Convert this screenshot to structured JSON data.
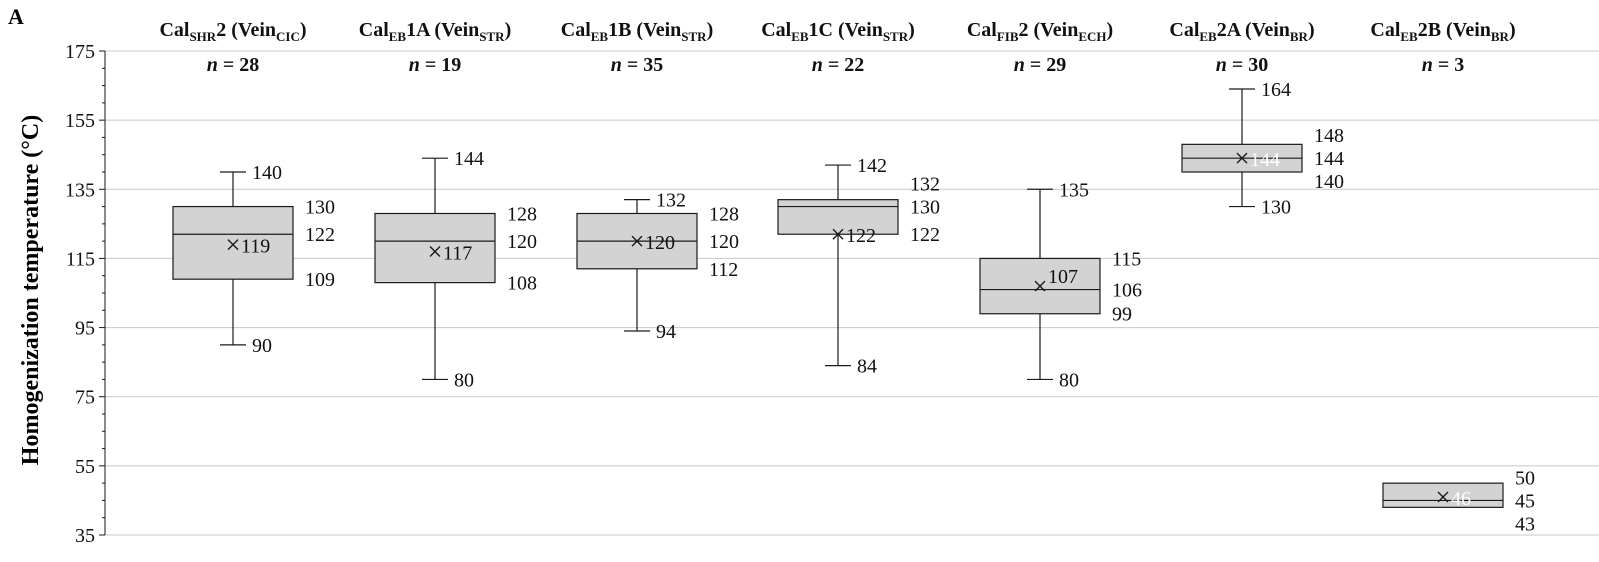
{
  "panel_label": "A",
  "chart_data": {
    "type": "boxplot",
    "ylabel": "Homogenization temperature (°C)",
    "ylim": [
      35,
      175
    ],
    "yticks": [
      35,
      55,
      75,
      95,
      115,
      135,
      155,
      175
    ],
    "grid": true,
    "series": [
      {
        "label_parts": [
          [
            "Cal",
            "n"
          ],
          [
            "SHR",
            "sub"
          ],
          [
            "2 (Vein",
            "n"
          ],
          [
            "CIC",
            "sub"
          ],
          [
            ")",
            "n"
          ]
        ],
        "n_label": "n",
        "n_value": "= 28",
        "min": 90,
        "q1": 109,
        "median": 122,
        "q3": 130,
        "max": 140,
        "mean": 119,
        "labels": {
          "max": "140",
          "q3": "130",
          "median": "122",
          "q1": "109",
          "min": "90",
          "mean": "119"
        }
      },
      {
        "label_parts": [
          [
            "Cal",
            "n"
          ],
          [
            "EB",
            "sub"
          ],
          [
            "1A (Vein",
            "n"
          ],
          [
            "STR",
            "sub"
          ],
          [
            ")",
            "n"
          ]
        ],
        "n_label": "n",
        "n_value": "= 19",
        "min": 80,
        "q1": 108,
        "median": 120,
        "q3": 128,
        "max": 144,
        "mean": 117,
        "labels": {
          "max": "144",
          "q3": "128",
          "median": "120",
          "q1": "108",
          "min": "80",
          "mean": "117"
        }
      },
      {
        "label_parts": [
          [
            "Cal",
            "n"
          ],
          [
            "EB",
            "sub"
          ],
          [
            "1B (Vein",
            "n"
          ],
          [
            "STR",
            "sub"
          ],
          [
            ")",
            "n"
          ]
        ],
        "n_label": "n",
        "n_value": "= 35",
        "min": 94,
        "q1": 112,
        "median": 120,
        "q3": 128,
        "max": 132,
        "mean": 120,
        "labels": {
          "max": "132",
          "q3": "128",
          "median": "120",
          "q1": "112",
          "min": "94",
          "mean": "120"
        }
      },
      {
        "label_parts": [
          [
            "Cal",
            "n"
          ],
          [
            "EB",
            "sub"
          ],
          [
            "1C (Vein",
            "n"
          ],
          [
            "STR",
            "sub"
          ],
          [
            ")",
            "n"
          ]
        ],
        "n_label": "n",
        "n_value": "= 22",
        "min": 84,
        "q1": 122,
        "median": 130,
        "q3": 132,
        "max": 142,
        "mean": 122,
        "labels": {
          "max": "142",
          "q3": "132",
          "median": "130",
          "q1": "122",
          "min": "84",
          "mean": "122"
        }
      },
      {
        "label_parts": [
          [
            "Cal",
            "n"
          ],
          [
            "FIB",
            "sub"
          ],
          [
            "2 (Vein",
            "n"
          ],
          [
            "ECH",
            "sub"
          ],
          [
            ")",
            "n"
          ]
        ],
        "n_label": "n",
        "n_value": "= 29",
        "min": 80,
        "q1": 99,
        "median": 106,
        "q3": 115,
        "max": 135,
        "mean": 107,
        "labels": {
          "max": "135",
          "q3": "115",
          "median": "106",
          "q1": "99",
          "min": "80",
          "mean": "107"
        }
      },
      {
        "label_parts": [
          [
            "Cal",
            "n"
          ],
          [
            "EB",
            "sub"
          ],
          [
            "2A (Vein",
            "n"
          ],
          [
            "BR",
            "sub"
          ],
          [
            ")",
            "n"
          ]
        ],
        "n_label": "n",
        "n_value": "= 30",
        "min": 130,
        "q1": 140,
        "median": 144,
        "q3": 148,
        "max": 164,
        "mean": 144,
        "labels": {
          "max": "164",
          "q3": "148",
          "median": "144",
          "q1": "140",
          "min": "130",
          "mean": "144"
        }
      },
      {
        "label_parts": [
          [
            "Cal",
            "n"
          ],
          [
            "EB",
            "sub"
          ],
          [
            "2B (Vein",
            "n"
          ],
          [
            "BR",
            "sub"
          ],
          [
            ")",
            "n"
          ]
        ],
        "n_label": "n",
        "n_value": "= 3",
        "min": 43,
        "q1": 43,
        "median": 45,
        "q3": 50,
        "max": 50,
        "mean": 46,
        "labels": {
          "q3": "50",
          "median": "45",
          "q1": "43",
          "mean": "46"
        }
      }
    ]
  },
  "colors": {
    "box_fill": "#d3d3d3",
    "stroke": "#1a1a1a",
    "grid": "#c8c8c8",
    "text": "#111111",
    "mean_label_light": "#ffffff"
  }
}
